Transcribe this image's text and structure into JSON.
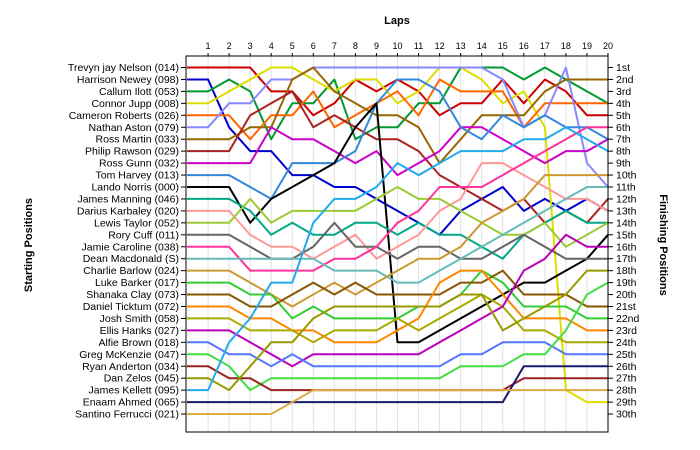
{
  "chart_data": {
    "type": "line",
    "title": "Laps",
    "ylabel_left": "Starting Positions",
    "ylabel_right": "Finishing Positions",
    "x": [
      0,
      1,
      2,
      3,
      4,
      5,
      6,
      7,
      8,
      9,
      10,
      11,
      12,
      13,
      14,
      15,
      16,
      17,
      18,
      19,
      20
    ],
    "x_tick_labels": [
      "1",
      "2",
      "3",
      "4",
      "5",
      "6",
      "7",
      "8",
      "9",
      "10",
      "11",
      "12",
      "13",
      "14",
      "15",
      "16",
      "17",
      "18",
      "19",
      "20"
    ],
    "starting_labels": [
      "Trevyn jay Nelson (014)",
      "Harrison Newey (098)",
      "Callum Ilott (053)",
      "Connor Jupp (008)",
      "Cameron Roberts (026)",
      "Nathan Aston (079)",
      "Ross Martin (033)",
      "Philip Rawson (029)",
      "Ross Gunn (032)",
      "Tom Harvey (013)",
      "Lando Norris (000)",
      "James Manning (046)",
      "Darius Karbaley (020)",
      "Lewis Taylor (052)",
      "Rory Cuff (011)",
      "Jamie Caroline (038)",
      "Dean Macdonald (S)",
      "Charlie Barlow (024)",
      "Luke Barker (017)",
      "Shanaka Clay (073)",
      "Daniel Ticktum (072)",
      "Josh Smith (058)",
      "Ellis Hanks (027)",
      "Alfie Brown (018)",
      "Greg McKenzie (047)",
      "Ryan Anderton (034)",
      "Dan Zelos (045)",
      "James Kellett (095)",
      "Enaam Ahmed (065)",
      "Santino Ferrucci (021)"
    ],
    "finishing_labels": [
      "1st",
      "2nd",
      "3rd",
      "4th",
      "5th",
      "6th",
      "7th",
      "8th",
      "9th",
      "10th",
      "11th",
      "12th",
      "13th",
      "14th",
      "15th",
      "16th",
      "17th",
      "18th",
      "19th",
      "20th",
      "21st",
      "22nd",
      "23rd",
      "24th",
      "25th",
      "26th",
      "27th",
      "28th",
      "29th",
      "30th"
    ],
    "ylim": [
      1,
      30
    ],
    "grid": true,
    "series": [
      {
        "color": "#cc0000",
        "values": [
          1,
          1,
          1,
          1,
          3,
          3,
          5,
          4,
          2,
          3,
          2,
          3,
          5,
          4,
          4,
          2,
          4,
          2,
          3,
          5,
          5
        ]
      },
      {
        "color": "#0000cc",
        "values": [
          2,
          2,
          6,
          8,
          8,
          10,
          10,
          11,
          11,
          12,
          13,
          14,
          15,
          13,
          12,
          11,
          13,
          12,
          13,
          12,
          13
        ]
      },
      {
        "color": "#009933",
        "values": [
          3,
          3,
          2,
          3,
          7,
          4,
          4,
          2,
          7,
          6,
          6,
          4,
          4,
          1,
          1,
          1,
          2,
          1,
          2,
          3,
          4
        ]
      },
      {
        "color": "#dddd00",
        "values": [
          4,
          4,
          3,
          2,
          1,
          1,
          2,
          3,
          2,
          2,
          4,
          3,
          1,
          1,
          2,
          4,
          3,
          6,
          28,
          29,
          29
        ]
      },
      {
        "color": "#ff6600",
        "values": [
          5,
          5,
          5,
          7,
          5,
          5,
          3,
          6,
          5,
          4,
          3,
          5,
          2,
          3,
          3,
          3,
          6,
          4,
          4,
          4,
          4
        ]
      },
      {
        "color": "#8888ff",
        "values": [
          6,
          6,
          4,
          4,
          2,
          2,
          1,
          1,
          1,
          1,
          1,
          1,
          1,
          1,
          1,
          2,
          6,
          5,
          1,
          9,
          11
        ]
      },
      {
        "color": "#996600",
        "values": [
          7,
          7,
          7,
          6,
          6,
          2,
          1,
          3,
          4,
          5,
          5,
          6,
          9,
          7,
          5,
          5,
          5,
          3,
          2,
          2,
          2
        ]
      },
      {
        "color": "#aa2222",
        "values": [
          8,
          8,
          8,
          5,
          4,
          3,
          6,
          5,
          6,
          7,
          7,
          8,
          10,
          11,
          12,
          13,
          12,
          14,
          13,
          14,
          12
        ]
      },
      {
        "color": "#cc00cc",
        "values": [
          9,
          9,
          9,
          9,
          6,
          7,
          7,
          8,
          9,
          8,
          10,
          9,
          8,
          6,
          6,
          7,
          8,
          9,
          8,
          8,
          7
        ]
      },
      {
        "color": "#3388dd",
        "values": [
          10,
          10,
          10,
          11,
          12,
          9,
          9,
          9,
          8,
          4,
          2,
          2,
          3,
          6,
          7,
          5,
          6,
          5,
          6,
          6,
          7
        ]
      },
      {
        "color": "#000000",
        "values": [
          11,
          11,
          11,
          14,
          12,
          11,
          10,
          9,
          6,
          4,
          24,
          24,
          23,
          22,
          21,
          20,
          19,
          19,
          18,
          17,
          15
        ]
      },
      {
        "color": "#00aa88",
        "values": [
          12,
          12,
          12,
          13,
          15,
          14,
          15,
          15,
          14,
          14,
          15,
          14,
          15,
          15,
          16,
          17,
          15,
          14,
          13,
          14,
          14
        ]
      },
      {
        "color": "#ff9999",
        "values": [
          13,
          13,
          13,
          15,
          16,
          16,
          17,
          16,
          15,
          17,
          16,
          15,
          13,
          12,
          9,
          9,
          10,
          11,
          12,
          12,
          13
        ]
      },
      {
        "color": "#99cc33",
        "values": [
          14,
          14,
          14,
          12,
          14,
          13,
          13,
          13,
          13,
          12,
          11,
          12,
          12,
          13,
          14,
          15,
          15,
          14,
          16,
          15,
          14
        ]
      },
      {
        "color": "#666666",
        "values": [
          15,
          15,
          15,
          16,
          17,
          17,
          16,
          14,
          16,
          16,
          17,
          16,
          16,
          17,
          17,
          16,
          15,
          16,
          17,
          17,
          17
        ]
      },
      {
        "color": "#ff3399",
        "values": [
          16,
          16,
          16,
          18,
          18,
          18,
          18,
          17,
          17,
          16,
          14,
          13,
          11,
          11,
          11,
          10,
          9,
          8,
          7,
          6,
          6
        ]
      },
      {
        "color": "#66bbbb",
        "values": [
          17,
          17,
          17,
          17,
          17,
          17,
          17,
          18,
          18,
          18,
          19,
          19,
          18,
          17,
          16,
          15,
          14,
          13,
          12,
          11,
          11
        ]
      },
      {
        "color": "#cc9933",
        "values": [
          18,
          18,
          18,
          19,
          20,
          21,
          20,
          19,
          20,
          19,
          18,
          17,
          17,
          16,
          14,
          13,
          12,
          10,
          10,
          10,
          10
        ]
      },
      {
        "color": "#33cc33",
        "values": [
          19,
          19,
          19,
          20,
          20,
          22,
          21,
          22,
          22,
          22,
          22,
          21,
          21,
          20,
          18,
          19,
          21,
          21,
          21,
          22,
          22
        ]
      },
      {
        "color": "#885500",
        "values": [
          20,
          20,
          20,
          21,
          21,
          20,
          19,
          20,
          19,
          20,
          20,
          20,
          20,
          19,
          19,
          18,
          20,
          20,
          20,
          21,
          21
        ]
      },
      {
        "color": "#ff8800",
        "values": [
          21,
          21,
          21,
          22,
          22,
          23,
          23,
          24,
          24,
          24,
          23,
          22,
          19,
          18,
          18,
          20,
          22,
          22,
          22,
          23,
          23
        ]
      },
      {
        "color": "#aaaa00",
        "values": [
          22,
          22,
          22,
          23,
          23,
          23,
          24,
          23,
          23,
          23,
          22,
          23,
          22,
          21,
          20,
          21,
          23,
          23,
          24,
          24,
          24
        ]
      },
      {
        "color": "#bb00bb",
        "values": [
          23,
          23,
          23,
          24,
          25,
          26,
          25,
          25,
          25,
          25,
          25,
          25,
          24,
          23,
          22,
          21,
          18,
          17,
          15,
          16,
          16
        ]
      },
      {
        "color": "#5577ff",
        "values": [
          24,
          24,
          25,
          25,
          26,
          25,
          26,
          26,
          26,
          26,
          26,
          26,
          26,
          25,
          25,
          24,
          24,
          24,
          25,
          25,
          25
        ]
      },
      {
        "color": "#44dd44",
        "values": [
          25,
          25,
          26,
          28,
          27,
          27,
          27,
          27,
          27,
          27,
          27,
          27,
          27,
          26,
          26,
          26,
          25,
          25,
          23,
          20,
          19
        ]
      },
      {
        "color": "#992222",
        "values": [
          26,
          26,
          27,
          27,
          28,
          28,
          28,
          28,
          28,
          28,
          28,
          28,
          28,
          28,
          28,
          28,
          27,
          27,
          27,
          27,
          27
        ]
      },
      {
        "color": "#999900",
        "values": [
          27,
          27,
          28,
          26,
          24,
          24,
          22,
          21,
          21,
          21,
          21,
          21,
          21,
          20,
          20,
          23,
          22,
          21,
          20,
          18,
          18
        ]
      },
      {
        "color": "#22aaee",
        "values": [
          28,
          28,
          24,
          22,
          19,
          19,
          14,
          12,
          12,
          11,
          9,
          10,
          9,
          8,
          8,
          8,
          7,
          7,
          6,
          7,
          8
        ]
      },
      {
        "color": "#1a1a6a",
        "values": [
          29,
          29,
          29,
          29,
          29,
          29,
          29,
          29,
          29,
          29,
          29,
          29,
          29,
          29,
          29,
          29,
          26,
          26,
          26,
          26,
          26
        ]
      },
      {
        "color": "#ddaa44",
        "values": [
          30,
          30,
          30,
          30,
          30,
          29,
          28,
          28,
          28,
          28,
          28,
          28,
          28,
          28,
          28,
          28,
          28,
          28,
          28,
          28,
          28
        ]
      }
    ]
  }
}
